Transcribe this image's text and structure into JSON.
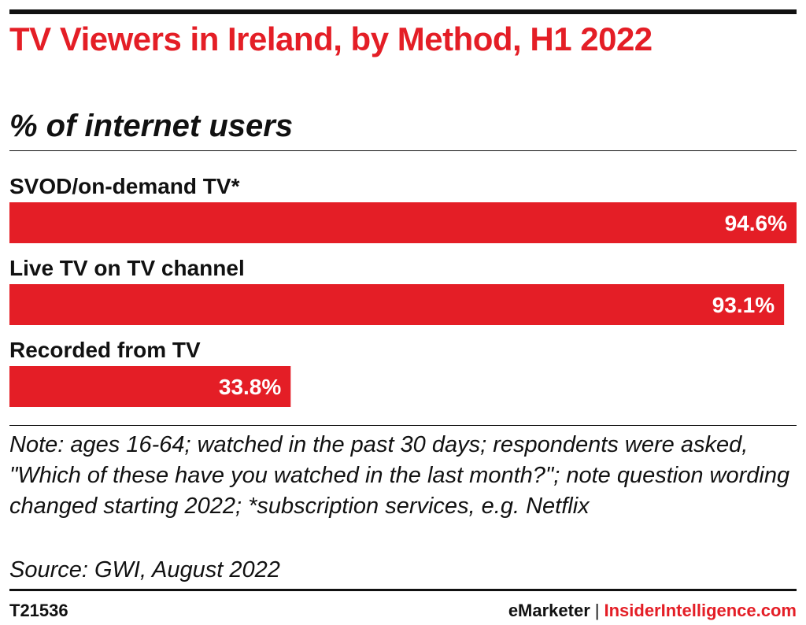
{
  "header": {
    "title": "TV Viewers in Ireland, by Method, H1 2022",
    "subtitle": "% of internet users"
  },
  "chart_data": {
    "type": "bar",
    "orientation": "horizontal",
    "categories": [
      "SVOD/on-demand TV*",
      "Live TV on TV channel",
      "Recorded from TV"
    ],
    "values": [
      94.6,
      93.1,
      33.8
    ],
    "value_labels": [
      "94.6%",
      "93.1%",
      "33.8%"
    ],
    "title": "TV Viewers in Ireland, by Method, H1 2022",
    "subtitle": "% of internet users",
    "xlabel": "",
    "ylabel": "",
    "xlim": [
      0,
      100
    ],
    "grid": false,
    "legend": "none",
    "bar_color": "#e41e26"
  },
  "footer": {
    "note_lead": "Note:",
    "note_text": " ages 16-64; watched in the past 30 days; respondents were asked, \"Which of these have you watched in the last month?\"; note question wording changed starting 2022; *subscription services, e.g. Netflix",
    "source": "Source: GWI, August 2022",
    "chart_id": "T21536",
    "brand_emarketer": "eMarketer",
    "brand_separator": "|",
    "brand_insider": "InsiderIntelligence.com"
  },
  "colors": {
    "accent": "#e41e26",
    "text": "#111111",
    "label_on_bar": "#ffffff"
  }
}
